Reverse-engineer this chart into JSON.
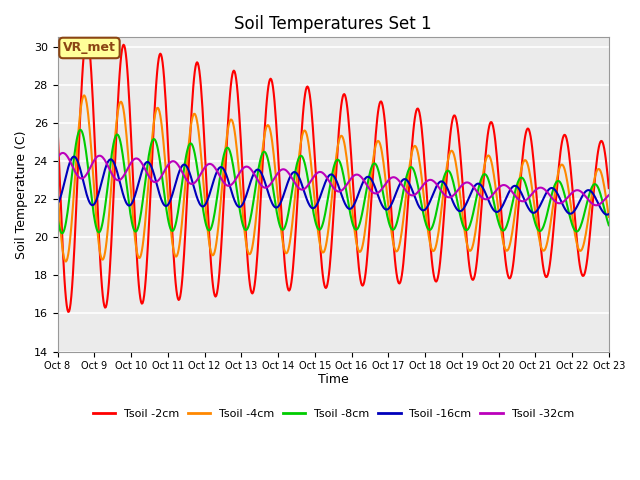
{
  "title": "Soil Temperatures Set 1",
  "xlabel": "Time",
  "ylabel": "Soil Temperature (C)",
  "ylim": [
    14,
    30.5
  ],
  "xlim": [
    0,
    15
  ],
  "bg_color": "#ebebeb",
  "annotation_text": "VR_met",
  "annotation_bg": "#ffff99",
  "annotation_border": "#8b4513",
  "series_colors": {
    "Tsoil -2cm": "#ff0000",
    "Tsoil -4cm": "#ff8800",
    "Tsoil -8cm": "#00cc00",
    "Tsoil -16cm": "#0000bb",
    "Tsoil -32cm": "#bb00bb"
  },
  "x_tick_labels": [
    "Oct 8",
    "Oct 9",
    "Oct 10",
    "Oct 11",
    "Oct 12",
    "Oct 13",
    "Oct 14",
    "Oct 15",
    "Oct 16",
    "Oct 17",
    "Oct 18",
    "Oct 19",
    "Oct 20",
    "Oct 21",
    "Oct 22",
    "Oct 23"
  ],
  "y_ticks": [
    14,
    16,
    18,
    20,
    22,
    24,
    26,
    28,
    30
  ],
  "grid_color": "#ffffff",
  "line_width": 1.5,
  "figsize": [
    6.4,
    4.8
  ],
  "dpi": 100
}
